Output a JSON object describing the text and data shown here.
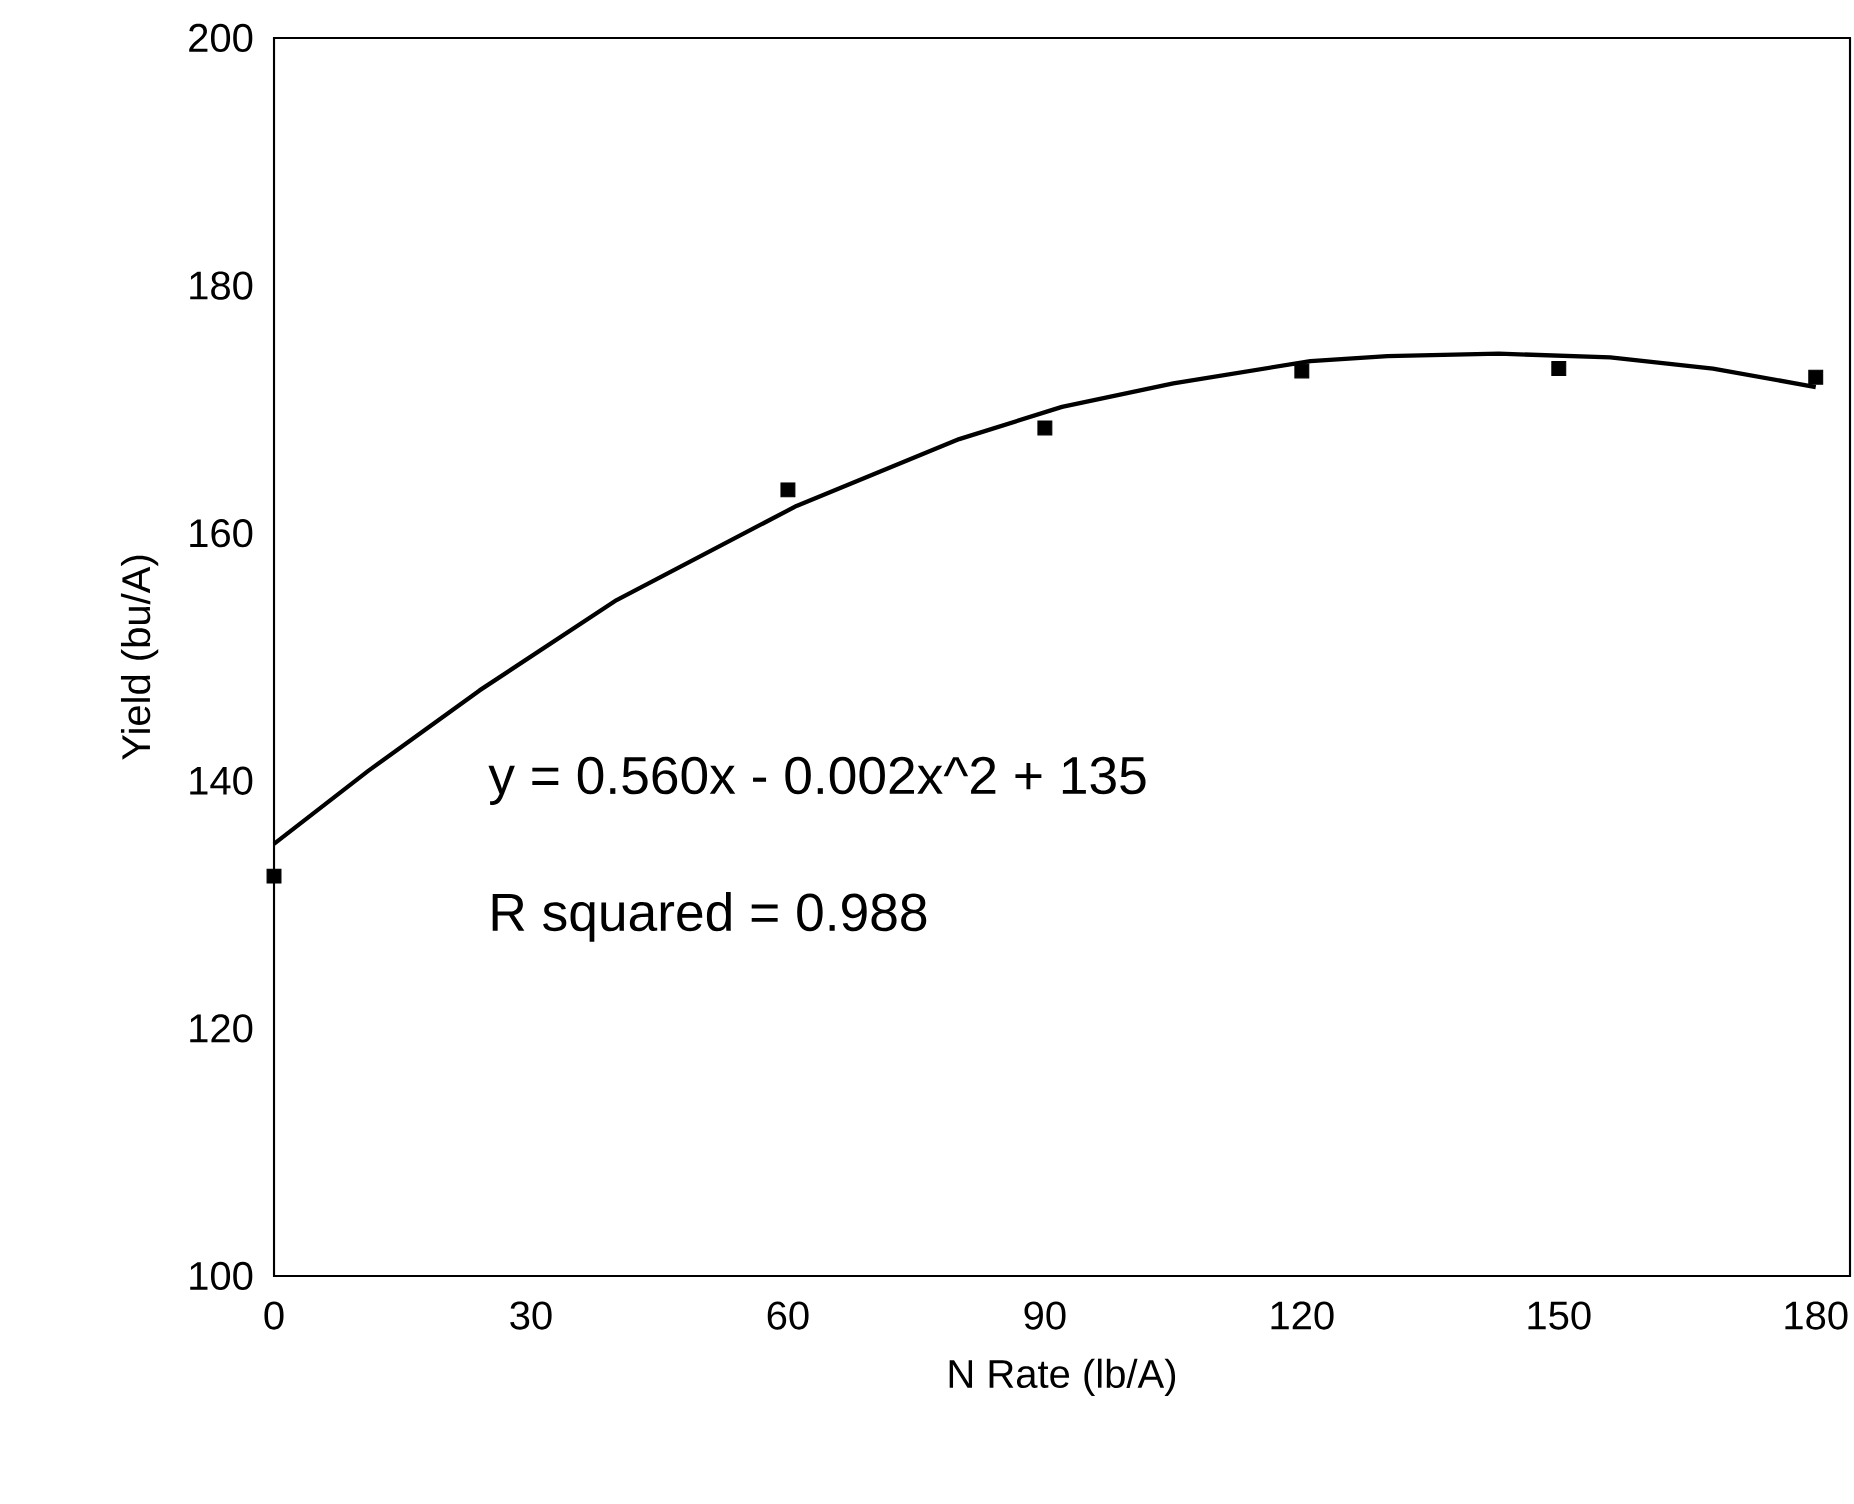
{
  "chart_data": {
    "type": "scatter",
    "xlabel": "N Rate (lb/A)",
    "ylabel": "Yield (bu/A)",
    "xlim": [
      0,
      184
    ],
    "xticks": [
      0,
      30,
      60,
      90,
      120,
      150,
      180
    ],
    "ylim": [
      100,
      200
    ],
    "yticks": [
      100,
      120,
      140,
      160,
      180,
      200
    ],
    "marker": "square",
    "annotations": [
      "y = 0.560x - 0.002x^2 + 135",
      "R squared = 0.988"
    ],
    "series": [
      {
        "color": "#000000",
        "x": [
          0,
          60,
          90,
          120,
          150,
          180
        ],
        "values": [
          132.3,
          163.5,
          168.5,
          173.1,
          173.3,
          172.6
        ]
      },
      {
        "type": "line",
        "color": "#000000",
        "marker": "none",
        "line_style": "solid",
        "x": [
          0,
          11,
          24,
          40,
          61,
          80,
          92,
          105,
          121,
          130,
          143,
          156,
          168,
          180
        ],
        "values": [
          134.9,
          140.8,
          147.3,
          154.6,
          162.2,
          167.6,
          170.2,
          172.1,
          173.9,
          174.3,
          174.5,
          174.2,
          173.3,
          171.8
        ]
      }
    ]
  }
}
